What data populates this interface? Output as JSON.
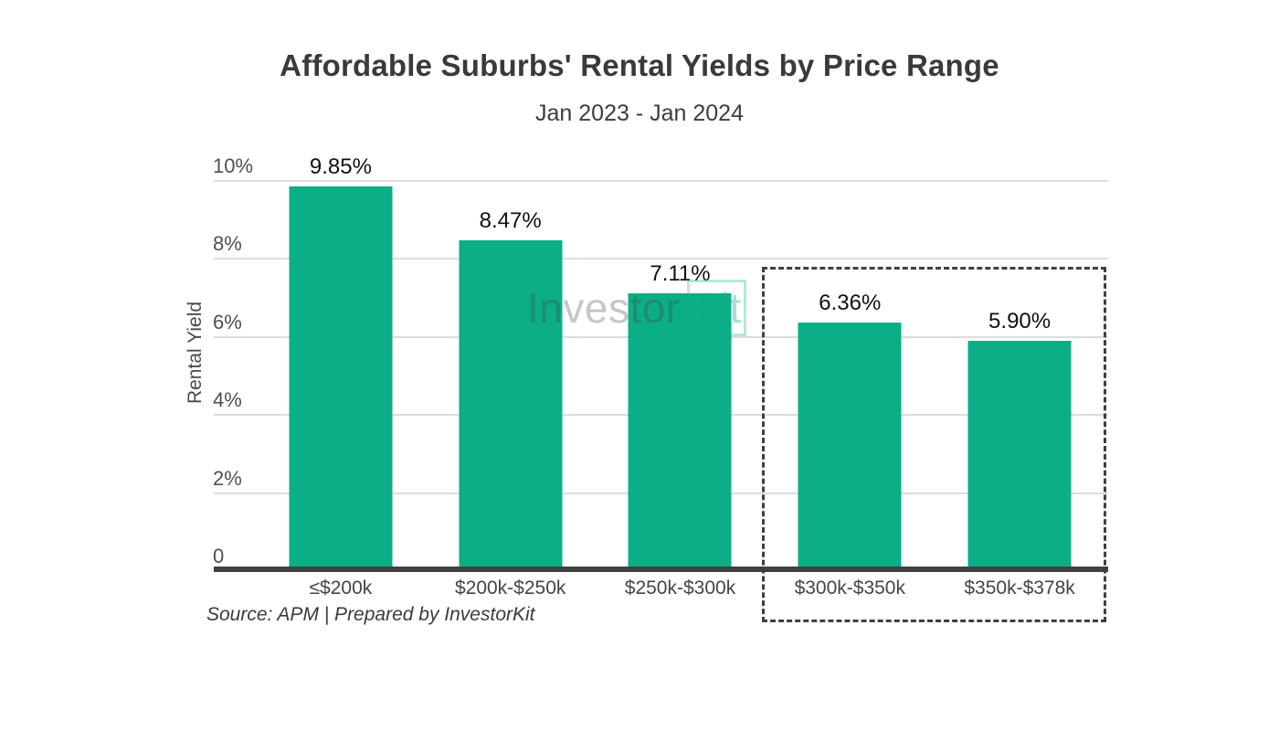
{
  "chart": {
    "title": "Affordable Suburbs' Rental Yields by Price Range",
    "subtitle": "Jan 2023 - Jan 2024",
    "y_axis_title": "Rental Yield",
    "source": "Source: APM | Prepared by InvestorKit",
    "watermark": {
      "part1": "Investor",
      "part2": "Kit"
    }
  },
  "chart_data": {
    "type": "bar",
    "title": "Affordable Suburbs' Rental Yields by Price Range",
    "subtitle": "Jan 2023 - Jan 2024",
    "xlabel": "",
    "ylabel": "Rental Yield",
    "ylim": [
      0,
      10
    ],
    "categories": [
      "≤$200k",
      "$200k-$250k",
      "$250k-$300k",
      "$300k-$350k",
      "$350k-$378k"
    ],
    "values": [
      9.85,
      8.47,
      7.11,
      6.36,
      5.9
    ],
    "value_labels": [
      "9.85%",
      "8.47%",
      "7.11%",
      "6.36%",
      "5.90%"
    ],
    "y_ticks": [
      {
        "value": 0,
        "label": "0"
      },
      {
        "value": 2,
        "label": "2%"
      },
      {
        "value": 4,
        "label": "4%"
      },
      {
        "value": 6,
        "label": "6%"
      },
      {
        "value": 8,
        "label": "8%"
      },
      {
        "value": 10,
        "label": "10%"
      }
    ],
    "grid": "horizontal",
    "legend": "none",
    "highlighted_categories": [
      "$300k-$350k",
      "$350k-$378k"
    ],
    "highlight_style": "dashed-box",
    "colors": {
      "bar": "#0cae87",
      "baseline": "#414141",
      "gridline": "#dcdcdc",
      "title_text": "#3a3a3a",
      "axis_text": "#4a4a4a",
      "value_label_text": "#101010",
      "highlight_border": "#3f3f3f",
      "watermark_gray": "rgba(70,70,70,0.30)",
      "watermark_green": "rgba(18,177,136,0.38)"
    }
  }
}
